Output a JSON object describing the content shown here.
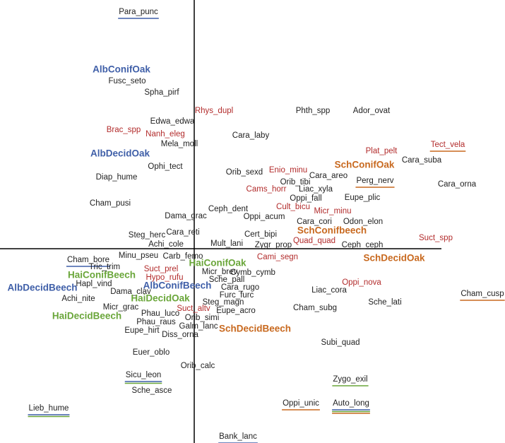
{
  "chart_data": {
    "type": "scatter",
    "xlim": [
      -2.75,
      4.4
    ],
    "ylim": [
      -2.75,
      3.52
    ],
    "points": [
      {
        "label": "Para_punc",
        "x": -0.79,
        "y": 3.35,
        "color": "#222222",
        "underline": [
          "#3f5fa8"
        ]
      },
      {
        "label": "AlbConifOak",
        "x": -1.03,
        "y": 2.53,
        "color": "#3f5fa8",
        "bold": true
      },
      {
        "label": "Fusc_seto",
        "x": -0.95,
        "y": 2.37,
        "color": "#222222"
      },
      {
        "label": "Spha_pirf",
        "x": -0.46,
        "y": 2.21,
        "color": "#222222"
      },
      {
        "label": "Rhys_dupl",
        "x": 0.28,
        "y": 1.95,
        "color": "#b22b2b"
      },
      {
        "label": "Phth_spp",
        "x": 1.68,
        "y": 1.95,
        "color": "#222222"
      },
      {
        "label": "Ador_ovat",
        "x": 2.51,
        "y": 1.95,
        "color": "#222222"
      },
      {
        "label": "Edwa_edwa",
        "x": -0.31,
        "y": 1.8,
        "color": "#222222"
      },
      {
        "label": "Brac_spp",
        "x": -1.0,
        "y": 1.68,
        "color": "#b22b2b"
      },
      {
        "label": "Nanh_eleg",
        "x": -0.41,
        "y": 1.62,
        "color": "#b22b2b"
      },
      {
        "label": "Cara_laby",
        "x": 0.8,
        "y": 1.6,
        "color": "#222222"
      },
      {
        "label": "Mela_moll",
        "x": -0.21,
        "y": 1.48,
        "color": "#222222"
      },
      {
        "label": "AlbDecidOak",
        "x": -1.05,
        "y": 1.34,
        "color": "#3f5fa8",
        "bold": true
      },
      {
        "label": "Plat_pelt",
        "x": 2.65,
        "y": 1.38,
        "color": "#b22b2b"
      },
      {
        "label": "Tect_vela",
        "x": 3.59,
        "y": 1.47,
        "color": "#b22b2b",
        "underline": [
          "#c8691f"
        ]
      },
      {
        "label": "Ophi_tect",
        "x": -0.41,
        "y": 1.16,
        "color": "#222222"
      },
      {
        "label": "Cara_suba",
        "x": 3.22,
        "y": 1.25,
        "color": "#222222"
      },
      {
        "label": "SchConifOak",
        "x": 2.41,
        "y": 1.18,
        "color": "#c8691f",
        "bold": true
      },
      {
        "label": "Orib_sexd",
        "x": 0.71,
        "y": 1.08,
        "color": "#222222"
      },
      {
        "label": "Enio_minu",
        "x": 1.33,
        "y": 1.11,
        "color": "#b22b2b"
      },
      {
        "label": "Diap_hume",
        "x": -1.1,
        "y": 1.01,
        "color": "#222222"
      },
      {
        "label": "Cara_areo",
        "x": 1.9,
        "y": 1.03,
        "color": "#222222"
      },
      {
        "label": "Perg_nerv",
        "x": 2.56,
        "y": 0.96,
        "color": "#222222",
        "underline": [
          "#c8691f"
        ]
      },
      {
        "label": "Orib_tibi",
        "x": 1.43,
        "y": 0.94,
        "color": "#222222"
      },
      {
        "label": "Cara_orna",
        "x": 3.72,
        "y": 0.91,
        "color": "#222222"
      },
      {
        "label": "Cams_horr",
        "x": 1.02,
        "y": 0.84,
        "color": "#b22b2b"
      },
      {
        "label": "Liac_xyla",
        "x": 1.72,
        "y": 0.84,
        "color": "#222222"
      },
      {
        "label": "Oppi_fall",
        "x": 1.58,
        "y": 0.71,
        "color": "#222222"
      },
      {
        "label": "Eupe_plic",
        "x": 2.38,
        "y": 0.72,
        "color": "#222222"
      },
      {
        "label": "Cham_pusi",
        "x": -1.19,
        "y": 0.64,
        "color": "#222222"
      },
      {
        "label": "Cult_bicu",
        "x": 1.4,
        "y": 0.59,
        "color": "#b22b2b"
      },
      {
        "label": "Micr_minu",
        "x": 1.96,
        "y": 0.53,
        "color": "#b22b2b"
      },
      {
        "label": "Ceph_dent",
        "x": 0.48,
        "y": 0.56,
        "color": "#222222"
      },
      {
        "label": "Dama_grac",
        "x": -0.12,
        "y": 0.46,
        "color": "#222222"
      },
      {
        "label": "Oppi_acum",
        "x": 0.99,
        "y": 0.45,
        "color": "#222222"
      },
      {
        "label": "Cara_cori",
        "x": 1.7,
        "y": 0.38,
        "color": "#222222"
      },
      {
        "label": "Odon_elon",
        "x": 2.39,
        "y": 0.38,
        "color": "#222222"
      },
      {
        "label": "SchConifbeech",
        "x": 1.95,
        "y": 0.25,
        "color": "#c8691f",
        "bold": true
      },
      {
        "label": "Cara_reti",
        "x": -0.16,
        "y": 0.23,
        "color": "#222222"
      },
      {
        "label": "Steg_herc",
        "x": -0.67,
        "y": 0.19,
        "color": "#222222"
      },
      {
        "label": "Cert_bipi",
        "x": 0.94,
        "y": 0.2,
        "color": "#222222"
      },
      {
        "label": "Suct_spp",
        "x": 3.42,
        "y": 0.15,
        "color": "#b22b2b"
      },
      {
        "label": "Achi_cole",
        "x": -0.4,
        "y": 0.06,
        "color": "#222222"
      },
      {
        "label": "Mult_lani",
        "x": 0.46,
        "y": 0.07,
        "color": "#222222"
      },
      {
        "label": "Zygr_prop",
        "x": 1.12,
        "y": 0.05,
        "color": "#222222"
      },
      {
        "label": "Quad_quad",
        "x": 1.7,
        "y": 0.11,
        "color": "#b22b2b"
      },
      {
        "label": "Ceph_ceph",
        "x": 2.38,
        "y": 0.05,
        "color": "#222222"
      },
      {
        "label": "Minu_pseu",
        "x": -0.79,
        "y": -0.1,
        "color": "#222222"
      },
      {
        "label": "Carb_femo",
        "x": -0.16,
        "y": -0.11,
        "color": "#222222"
      },
      {
        "label": "Cami_segn",
        "x": 1.18,
        "y": -0.12,
        "color": "#b22b2b"
      },
      {
        "label": "SchDecidOak",
        "x": 2.83,
        "y": -0.14,
        "color": "#c8691f",
        "bold": true
      },
      {
        "label": "Cham_bore",
        "x": -1.5,
        "y": -0.16,
        "color": "#222222",
        "underline": [
          "#3f5fa8"
        ]
      },
      {
        "label": "HaiConifOak",
        "x": 0.33,
        "y": -0.21,
        "color": "#6aa63a",
        "bold": true
      },
      {
        "label": "Tric_trim",
        "x": -1.27,
        "y": -0.26,
        "color": "#222222"
      },
      {
        "label": "Suct_prel",
        "x": -0.47,
        "y": -0.29,
        "color": "#b22b2b"
      },
      {
        "label": "Micr_brev",
        "x": 0.36,
        "y": -0.33,
        "color": "#222222"
      },
      {
        "label": "Cymb_cymb",
        "x": 0.83,
        "y": -0.34,
        "color": "#222222"
      },
      {
        "label": "HaiConifBeech",
        "x": -1.31,
        "y": -0.38,
        "color": "#6aa63a",
        "bold": true
      },
      {
        "label": "Hypo_rufu",
        "x": -0.42,
        "y": -0.41,
        "color": "#b22b2b"
      },
      {
        "label": "Sche_pall",
        "x": 0.46,
        "y": -0.44,
        "color": "#222222"
      },
      {
        "label": "Oppi_nova",
        "x": 2.37,
        "y": -0.48,
        "color": "#b22b2b"
      },
      {
        "label": "Hapl_vind",
        "x": -1.42,
        "y": -0.5,
        "color": "#222222"
      },
      {
        "label": "AlbConifBeech",
        "x": -0.24,
        "y": -0.53,
        "color": "#3f5fa8",
        "bold": true
      },
      {
        "label": "Cara_rugo",
        "x": 0.65,
        "y": -0.55,
        "color": "#222222"
      },
      {
        "label": "AlbDecidBeech",
        "x": -2.15,
        "y": -0.56,
        "color": "#3f5fa8",
        "bold": true
      },
      {
        "label": "Dama_clav",
        "x": -0.9,
        "y": -0.61,
        "color": "#222222"
      },
      {
        "label": "Liac_cora",
        "x": 1.91,
        "y": -0.59,
        "color": "#222222"
      },
      {
        "label": "Cham_cusp",
        "x": 4.08,
        "y": -0.64,
        "color": "#222222",
        "underline": [
          "#c8691f"
        ]
      },
      {
        "label": "Furc_furc",
        "x": 0.6,
        "y": -0.66,
        "color": "#222222"
      },
      {
        "label": "Achi_nite",
        "x": -1.64,
        "y": -0.71,
        "color": "#222222"
      },
      {
        "label": "HaiDecidOak",
        "x": -0.48,
        "y": -0.71,
        "color": "#6aa63a",
        "bold": true
      },
      {
        "label": "Steg_magn",
        "x": 0.41,
        "y": -0.76,
        "color": "#222222"
      },
      {
        "label": "Sche_lati",
        "x": 2.7,
        "y": -0.76,
        "color": "#222222"
      },
      {
        "label": "Micr_grac",
        "x": -1.04,
        "y": -0.83,
        "color": "#222222"
      },
      {
        "label": "Suct_altv",
        "x": -0.01,
        "y": -0.85,
        "color": "#b22b2b"
      },
      {
        "label": "Cham_subg",
        "x": 1.71,
        "y": -0.84,
        "color": "#222222"
      },
      {
        "label": "Eupe_acro",
        "x": 0.59,
        "y": -0.88,
        "color": "#222222"
      },
      {
        "label": "Phau_luco",
        "x": -0.48,
        "y": -0.92,
        "color": "#222222"
      },
      {
        "label": "HaiDecidBeech",
        "x": -1.52,
        "y": -0.96,
        "color": "#6aa63a",
        "bold": true
      },
      {
        "label": "Orib_simi",
        "x": 0.11,
        "y": -0.98,
        "color": "#222222"
      },
      {
        "label": "Phau_raus",
        "x": -0.54,
        "y": -1.04,
        "color": "#222222"
      },
      {
        "label": "Galm_lanc",
        "x": 0.06,
        "y": -1.1,
        "color": "#222222"
      },
      {
        "label": "SchDecidBeech",
        "x": 0.86,
        "y": -1.14,
        "color": "#c8691f",
        "bold": true
      },
      {
        "label": "Eupe_hirt",
        "x": -0.74,
        "y": -1.16,
        "color": "#222222"
      },
      {
        "label": "Diss_orna",
        "x": -0.2,
        "y": -1.22,
        "color": "#222222"
      },
      {
        "label": "Subi_quad",
        "x": 2.07,
        "y": -1.33,
        "color": "#222222"
      },
      {
        "label": "Euer_oblo",
        "x": -0.61,
        "y": -1.47,
        "color": "#222222"
      },
      {
        "label": "Orib_calc",
        "x": 0.05,
        "y": -1.66,
        "color": "#222222"
      },
      {
        "label": "Sicu_leon",
        "x": -0.72,
        "y": -1.79,
        "color": "#222222",
        "underline": [
          "#3f5fa8",
          "#6aa63a"
        ]
      },
      {
        "label": "Zygo_exil",
        "x": 2.21,
        "y": -1.85,
        "color": "#222222",
        "underline": [
          "#6aa63a"
        ]
      },
      {
        "label": "Sche_asce",
        "x": -0.6,
        "y": -2.01,
        "color": "#222222"
      },
      {
        "label": "Oppi_unic",
        "x": 1.51,
        "y": -2.19,
        "color": "#222222",
        "underline": [
          "#c8691f"
        ]
      },
      {
        "label": "Auto_long",
        "x": 2.22,
        "y": -2.19,
        "color": "#222222",
        "underline": [
          "#3f5fa8",
          "#6aa63a",
          "#c8691f"
        ]
      },
      {
        "label": "Lieb_hume",
        "x": -2.06,
        "y": -2.26,
        "color": "#222222",
        "underline": [
          "#3f5fa8",
          "#6aa63a"
        ]
      },
      {
        "label": "Bank_lanc",
        "x": 0.62,
        "y": -2.66,
        "color": "#222222",
        "underline": [
          "#3f5fa8"
        ]
      }
    ]
  }
}
